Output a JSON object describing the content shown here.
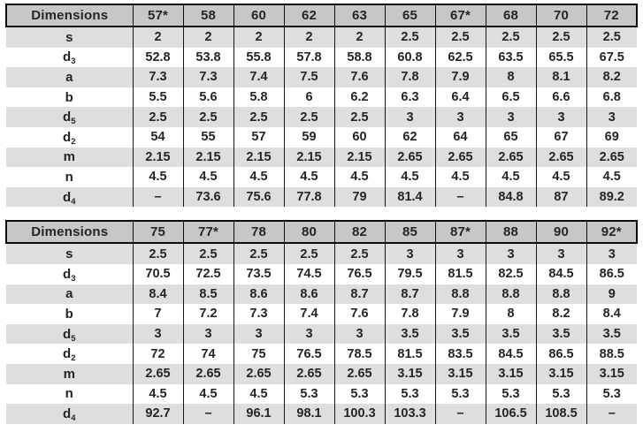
{
  "colors": {
    "header_bg": "#c7c7c7",
    "row_alt_bg": "#dedede",
    "row_bg": "#ffffff",
    "border": "#0c0c0c",
    "text": "#272425"
  },
  "tables": [
    {
      "header": [
        "Dimensions",
        "57*",
        "58",
        "60",
        "62",
        "63",
        "65",
        "67*",
        "68",
        "70",
        "72"
      ],
      "rows": [
        {
          "label": "s",
          "sub": "",
          "values": [
            "2",
            "2",
            "2",
            "2",
            "2",
            "2.5",
            "2.5",
            "2.5",
            "2.5",
            "2.5"
          ]
        },
        {
          "label": "d",
          "sub": "3",
          "values": [
            "52.8",
            "53.8",
            "55.8",
            "57.8",
            "58.8",
            "60.8",
            "62.5",
            "63.5",
            "65.5",
            "67.5"
          ]
        },
        {
          "label": "a",
          "sub": "",
          "values": [
            "7.3",
            "7.3",
            "7.4",
            "7.5",
            "7.6",
            "7.8",
            "7.9",
            "8",
            "8.1",
            "8.2"
          ]
        },
        {
          "label": "b",
          "sub": "",
          "values": [
            "5.5",
            "5.6",
            "5.8",
            "6",
            "6.2",
            "6.3",
            "6.4",
            "6.5",
            "6.6",
            "6.8"
          ]
        },
        {
          "label": "d",
          "sub": "5",
          "values": [
            "2.5",
            "2.5",
            "2.5",
            "2.5",
            "2.5",
            "3",
            "3",
            "3",
            "3",
            "3"
          ]
        },
        {
          "label": "d",
          "sub": "2",
          "values": [
            "54",
            "55",
            "57",
            "59",
            "60",
            "62",
            "64",
            "65",
            "67",
            "69"
          ]
        },
        {
          "label": "m",
          "sub": "",
          "values": [
            "2.15",
            "2.15",
            "2.15",
            "2.15",
            "2.15",
            "2.65",
            "2.65",
            "2.65",
            "2.65",
            "2.65"
          ]
        },
        {
          "label": "n",
          "sub": "",
          "values": [
            "4.5",
            "4.5",
            "4.5",
            "4.5",
            "4.5",
            "4.5",
            "4.5",
            "4.5",
            "4.5",
            "4.5"
          ]
        },
        {
          "label": "d",
          "sub": "4",
          "values": [
            "–",
            "73.6",
            "75.6",
            "77.8",
            "79",
            "81.4",
            "–",
            "84.8",
            "87",
            "89.2"
          ]
        }
      ]
    },
    {
      "header": [
        "Dimensions",
        "75",
        "77*",
        "78",
        "80",
        "82",
        "85",
        "87*",
        "88",
        "90",
        "92*"
      ],
      "rows": [
        {
          "label": "s",
          "sub": "",
          "values": [
            "2.5",
            "2.5",
            "2.5",
            "2.5",
            "2.5",
            "3",
            "3",
            "3",
            "3",
            "3"
          ]
        },
        {
          "label": "d",
          "sub": "3",
          "values": [
            "70.5",
            "72.5",
            "73.5",
            "74.5",
            "76.5",
            "79.5",
            "81.5",
            "82.5",
            "84.5",
            "86.5"
          ]
        },
        {
          "label": "a",
          "sub": "",
          "values": [
            "8.4",
            "8.5",
            "8.6",
            "8.6",
            "8.7",
            "8.7",
            "8.8",
            "8.8",
            "8.8",
            "9"
          ]
        },
        {
          "label": "b",
          "sub": "",
          "values": [
            "7",
            "7.2",
            "7.3",
            "7.4",
            "7.6",
            "7.8",
            "7.9",
            "8",
            "8.2",
            "8.4"
          ]
        },
        {
          "label": "d",
          "sub": "5",
          "values": [
            "3",
            "3",
            "3",
            "3",
            "3",
            "3.5",
            "3.5",
            "3.5",
            "3.5",
            "3.5"
          ]
        },
        {
          "label": "d",
          "sub": "2",
          "values": [
            "72",
            "74",
            "75",
            "76.5",
            "78.5",
            "81.5",
            "83.5",
            "84.5",
            "86.5",
            "88.5"
          ]
        },
        {
          "label": "m",
          "sub": "",
          "values": [
            "2.65",
            "2.65",
            "2.65",
            "2.65",
            "2.65",
            "3.15",
            "3.15",
            "3.15",
            "3.15",
            "3.15"
          ]
        },
        {
          "label": "n",
          "sub": "",
          "values": [
            "4.5",
            "4.5",
            "4.5",
            "5.3",
            "5.3",
            "5.3",
            "5.3",
            "5.3",
            "5.3",
            "5.3"
          ]
        },
        {
          "label": "d",
          "sub": "4",
          "values": [
            "92.7",
            "–",
            "96.1",
            "98.1",
            "100.3",
            "103.3",
            "–",
            "106.5",
            "108.5",
            "–"
          ]
        }
      ]
    }
  ]
}
